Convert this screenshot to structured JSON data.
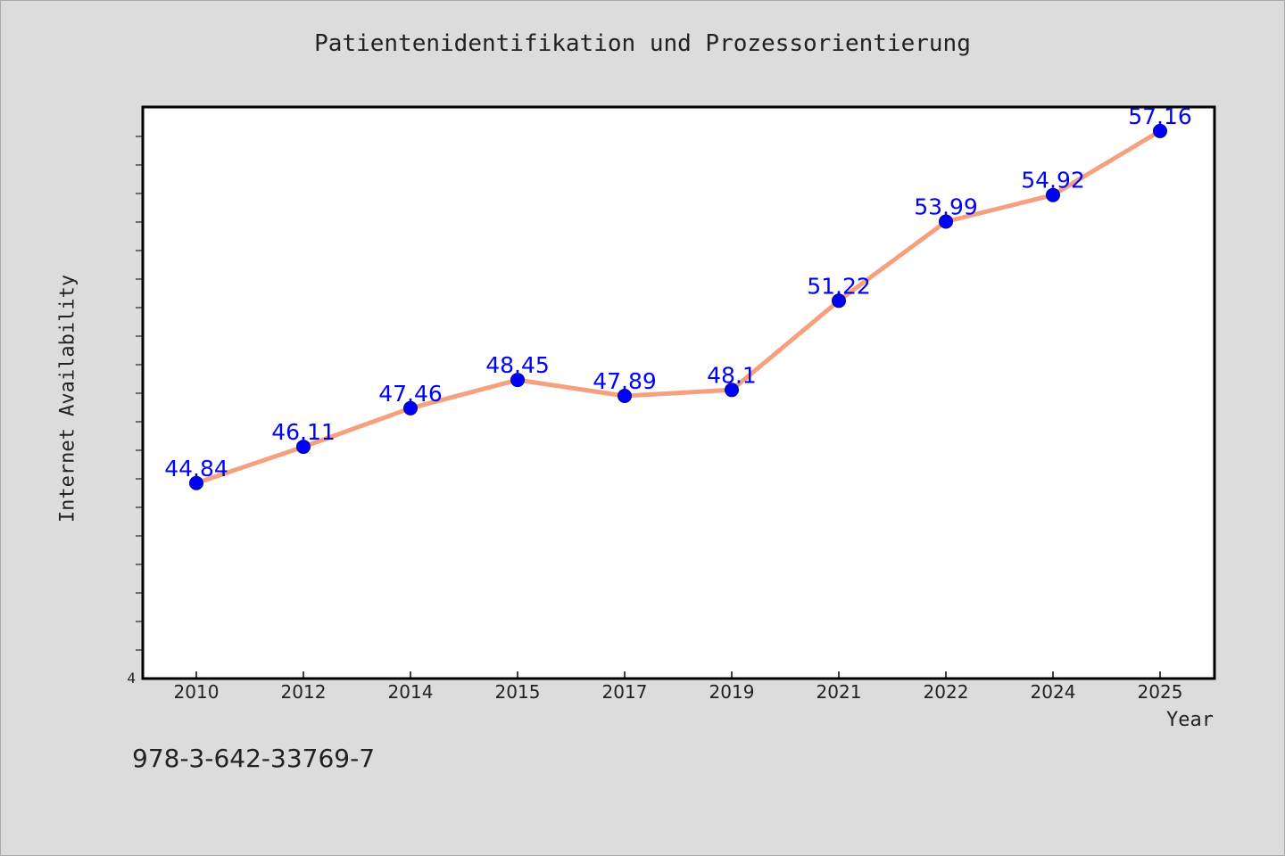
{
  "chart_data": {
    "type": "line",
    "title": "Patientenidentifikation und Prozessorientierung",
    "xlabel": "Year",
    "ylabel": "Internet Availability",
    "categories": [
      "2010",
      "2012",
      "2014",
      "2015",
      "2017",
      "2019",
      "2021",
      "2022",
      "2024",
      "2025"
    ],
    "values": [
      44.84,
      46.11,
      47.46,
      48.45,
      47.89,
      48.1,
      51.22,
      53.99,
      54.92,
      57.16
    ],
    "data_labels": [
      "44.84",
      "46.11",
      "47.46",
      "48.45",
      "47.89",
      "48.1",
      "51.22",
      "53.99",
      "54.92",
      "57.16"
    ],
    "y_tick_labels": [
      "4"
    ],
    "ylim": [
      38,
      58
    ],
    "grid": false,
    "line_color": "#f5a07e",
    "marker_color": "#0000ff",
    "label_color": "#0000ff"
  },
  "footer": {
    "isbn": "978-3-642-33769-7"
  }
}
